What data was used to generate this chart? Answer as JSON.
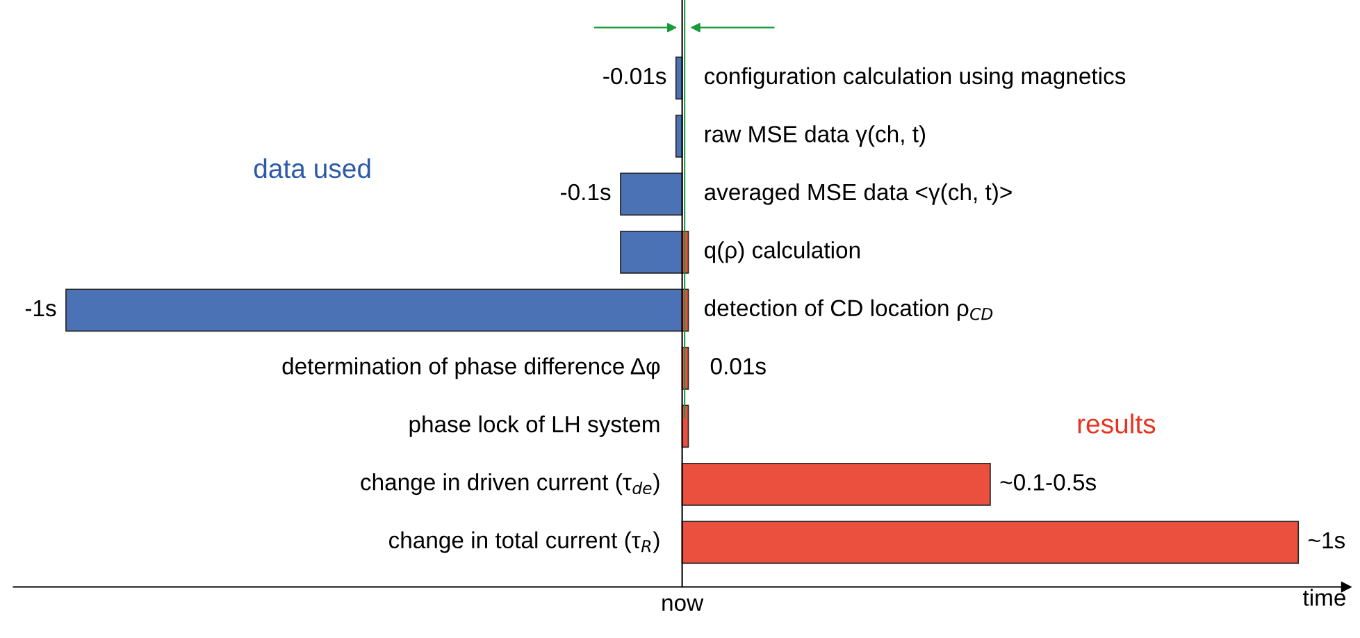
{
  "chart_data": {
    "type": "bar",
    "orientation": "horizontal",
    "xlim": [
      -1.085,
      1.078
    ],
    "xlabel": "time",
    "annotations": [
      "now"
    ],
    "categories": [
      "configuration calculation using magnetics",
      "raw MSE data γ(ch, t)",
      "averaged MSE data <γ(ch, t)>",
      "q(ρ) calculation",
      "detection of CD location ρ$_{CD}$",
      "determination of phase difference Δφ",
      "phase lock of LH system",
      "change in driven current (τ$_{de}$)",
      "change in total current (τ$_{R}$)"
    ],
    "series": [
      {
        "name": "data used",
        "color": "#2c5aa8",
        "values": [
          -0.01,
          -0.01,
          -0.1,
          -0.1,
          -1,
          null,
          null,
          null,
          null
        ],
        "value_labels": [
          "-0.01s",
          null,
          "-0.1s",
          null,
          "-1s",
          null,
          null,
          null,
          null
        ]
      },
      {
        "name": "results",
        "color": "#e8321e",
        "values": [
          null,
          null,
          null,
          0.01,
          0.01,
          0.01,
          0.01,
          0.5,
          1
        ],
        "value_labels": [
          null,
          null,
          null,
          null,
          null,
          "0.01s",
          null,
          "~0.1-0.5s",
          "~1s"
        ]
      }
    ],
    "ref_lines": [
      {
        "axis": "x",
        "value": 0.004,
        "color": "#1a9a3a"
      }
    ],
    "legend": false
  }
}
